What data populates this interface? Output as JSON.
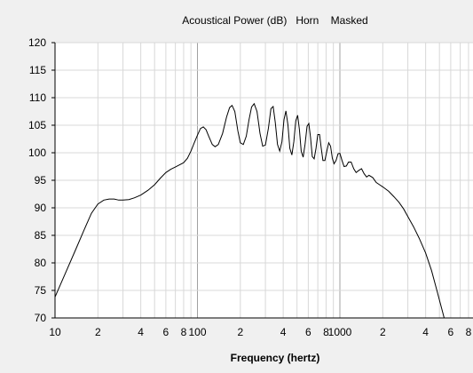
{
  "chart_data": {
    "type": "line",
    "title": "Acoustical Power (dB)   Horn    Masked",
    "xlabel": "Frequency (hertz)",
    "ylabel": "",
    "x_scale": "log",
    "xlim": [
      10,
      8000
    ],
    "ylim": [
      70,
      120
    ],
    "grid": true,
    "yticks": [
      70,
      75,
      80,
      85,
      90,
      95,
      100,
      105,
      110,
      115,
      120
    ],
    "xticks": [
      {
        "value": 10,
        "label": "10"
      },
      {
        "value": 20,
        "label": "2"
      },
      {
        "value": 40,
        "label": "4"
      },
      {
        "value": 60,
        "label": "6"
      },
      {
        "value": 80,
        "label": "8"
      },
      {
        "value": 100,
        "label": "100"
      },
      {
        "value": 200,
        "label": "2"
      },
      {
        "value": 400,
        "label": "4"
      },
      {
        "value": 600,
        "label": "6"
      },
      {
        "value": 800,
        "label": "8"
      },
      {
        "value": 1000,
        "label": "1000"
      },
      {
        "value": 2000,
        "label": "2"
      },
      {
        "value": 4000,
        "label": "4"
      },
      {
        "value": 6000,
        "label": "6"
      },
      {
        "value": 8000,
        "label": "8"
      }
    ],
    "series": [
      {
        "color": "#000000",
        "points": [
          [
            10,
            73.8
          ],
          [
            12,
            78.5
          ],
          [
            14,
            82.5
          ],
          [
            16,
            86.0
          ],
          [
            18,
            89.0
          ],
          [
            20,
            90.7
          ],
          [
            22,
            91.4
          ],
          [
            24,
            91.6
          ],
          [
            26,
            91.6
          ],
          [
            28,
            91.4
          ],
          [
            30,
            91.4
          ],
          [
            33,
            91.5
          ],
          [
            36,
            91.8
          ],
          [
            40,
            92.3
          ],
          [
            45,
            93.2
          ],
          [
            50,
            94.2
          ],
          [
            55,
            95.4
          ],
          [
            60,
            96.4
          ],
          [
            65,
            97.0
          ],
          [
            70,
            97.4
          ],
          [
            75,
            97.8
          ],
          [
            80,
            98.2
          ],
          [
            85,
            99.0
          ],
          [
            90,
            100.3
          ],
          [
            95,
            101.8
          ],
          [
            100,
            103.2
          ],
          [
            105,
            104.4
          ],
          [
            110,
            104.7
          ],
          [
            115,
            104.2
          ],
          [
            120,
            103.0
          ],
          [
            127,
            101.5
          ],
          [
            133,
            101.1
          ],
          [
            140,
            101.5
          ],
          [
            150,
            103.5
          ],
          [
            160,
            106.5
          ],
          [
            168,
            108.2
          ],
          [
            175,
            108.6
          ],
          [
            183,
            107.5
          ],
          [
            192,
            104.0
          ],
          [
            200,
            101.8
          ],
          [
            210,
            101.5
          ],
          [
            220,
            103.0
          ],
          [
            230,
            106.0
          ],
          [
            240,
            108.3
          ],
          [
            250,
            108.9
          ],
          [
            262,
            107.5
          ],
          [
            275,
            103.5
          ],
          [
            287,
            101.2
          ],
          [
            300,
            101.4
          ],
          [
            315,
            104.5
          ],
          [
            328,
            108.0
          ],
          [
            340,
            108.4
          ],
          [
            352,
            105.5
          ],
          [
            365,
            101.5
          ],
          [
            378,
            100.3
          ],
          [
            392,
            102.0
          ],
          [
            405,
            106.0
          ],
          [
            418,
            107.6
          ],
          [
            432,
            105.0
          ],
          [
            445,
            100.8
          ],
          [
            460,
            99.6
          ],
          [
            475,
            102.0
          ],
          [
            490,
            105.8
          ],
          [
            505,
            106.8
          ],
          [
            520,
            104.2
          ],
          [
            535,
            100.3
          ],
          [
            552,
            99.2
          ],
          [
            570,
            101.6
          ],
          [
            588,
            104.8
          ],
          [
            605,
            105.3
          ],
          [
            622,
            102.8
          ],
          [
            640,
            99.3
          ],
          [
            660,
            98.9
          ],
          [
            680,
            100.8
          ],
          [
            700,
            103.3
          ],
          [
            720,
            103.3
          ],
          [
            740,
            100.8
          ],
          [
            760,
            98.6
          ],
          [
            785,
            98.6
          ],
          [
            810,
            100.3
          ],
          [
            835,
            101.8
          ],
          [
            860,
            101.2
          ],
          [
            885,
            99.0
          ],
          [
            910,
            98.0
          ],
          [
            940,
            98.6
          ],
          [
            970,
            99.8
          ],
          [
            1000,
            99.9
          ],
          [
            1035,
            98.6
          ],
          [
            1070,
            97.5
          ],
          [
            1110,
            97.6
          ],
          [
            1150,
            98.3
          ],
          [
            1200,
            98.3
          ],
          [
            1250,
            97.1
          ],
          [
            1300,
            96.4
          ],
          [
            1360,
            96.8
          ],
          [
            1420,
            97.1
          ],
          [
            1480,
            96.2
          ],
          [
            1540,
            95.6
          ],
          [
            1600,
            95.9
          ],
          [
            1700,
            95.5
          ],
          [
            1800,
            94.6
          ],
          [
            1900,
            94.2
          ],
          [
            2000,
            93.8
          ],
          [
            2200,
            93.0
          ],
          [
            2400,
            92.0
          ],
          [
            2600,
            91.0
          ],
          [
            2800,
            89.8
          ],
          [
            3000,
            88.4
          ],
          [
            3300,
            86.5
          ],
          [
            3600,
            84.5
          ],
          [
            4000,
            81.8
          ],
          [
            4400,
            78.6
          ],
          [
            4800,
            75.0
          ],
          [
            5200,
            71.6
          ],
          [
            5400,
            70.0
          ]
        ]
      }
    ]
  }
}
